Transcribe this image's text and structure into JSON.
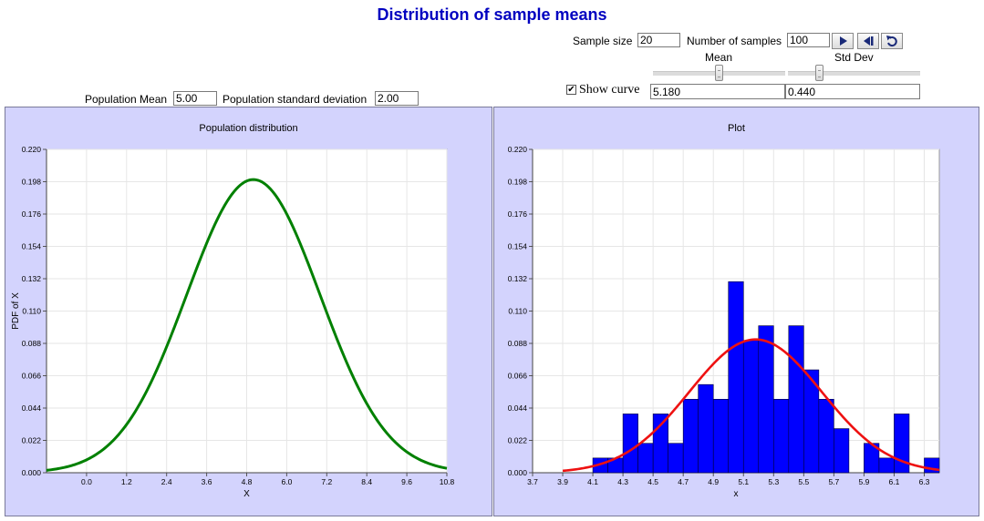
{
  "title": "Distribution of sample means",
  "controls": {
    "sample_size_label": "Sample size",
    "sample_size_value": "20",
    "num_samples_label": "Number of samples",
    "num_samples_value": "100",
    "mean_label": "Mean",
    "std_label": "Std Dev",
    "mean_slider": 0.5,
    "std_slider": 0.24,
    "show_curve_label": "Show curve",
    "show_curve_checked": true,
    "mean_value": "5.180",
    "std_value": "0.440",
    "pop_mean_label": "Population Mean",
    "pop_mean_value": "5.00",
    "pop_sd_label": "Population standard deviation",
    "pop_sd_value": "2.00",
    "play_icon": "play-icon",
    "step_icon": "step-icon",
    "reset_icon": "reset-icon"
  },
  "chart_data": [
    {
      "type": "line",
      "title": "Population distribution",
      "xlabel": "X",
      "ylabel": "PDF of X",
      "x_ticks": [
        "0.0",
        "1.2",
        "2.4",
        "3.6",
        "4.8",
        "6.0",
        "7.2",
        "8.4",
        "9.6",
        "10.8"
      ],
      "y_ticks": [
        "0.000",
        "0.022",
        "0.044",
        "0.066",
        "0.088",
        "0.110",
        "0.132",
        "0.154",
        "0.176",
        "0.198",
        "0.220"
      ],
      "xlim": [
        -1.2,
        10.8
      ],
      "ylim": [
        0,
        0.22
      ],
      "mean": 5.0,
      "sd": 2.0,
      "color": "#008000",
      "grid": true
    },
    {
      "type": "bar",
      "title": "Plot",
      "xlabel": "x",
      "ylabel": "",
      "x_ticks": [
        "3.7",
        "3.9",
        "4.1",
        "4.3",
        "4.5",
        "4.7",
        "4.9",
        "5.1",
        "5.3",
        "5.5",
        "5.7",
        "5.9",
        "6.1",
        "6.3"
      ],
      "y_ticks": [
        "0.000",
        "0.022",
        "0.044",
        "0.066",
        "0.088",
        "0.110",
        "0.132",
        "0.154",
        "0.176",
        "0.198",
        "0.220"
      ],
      "xlim": [
        3.7,
        6.4
      ],
      "ylim": [
        0,
        0.22
      ],
      "bin_width": 0.1,
      "bins": [
        {
          "x0": 4.1,
          "value": 0.01
        },
        {
          "x0": 4.2,
          "value": 0.01
        },
        {
          "x0": 4.3,
          "value": 0.04
        },
        {
          "x0": 4.4,
          "value": 0.02
        },
        {
          "x0": 4.5,
          "value": 0.04
        },
        {
          "x0": 4.6,
          "value": 0.02
        },
        {
          "x0": 4.7,
          "value": 0.05
        },
        {
          "x0": 4.8,
          "value": 0.06
        },
        {
          "x0": 4.9,
          "value": 0.05
        },
        {
          "x0": 5.0,
          "value": 0.13
        },
        {
          "x0": 5.1,
          "value": 0.09
        },
        {
          "x0": 5.2,
          "value": 0.1
        },
        {
          "x0": 5.3,
          "value": 0.05
        },
        {
          "x0": 5.4,
          "value": 0.1
        },
        {
          "x0": 5.5,
          "value": 0.07
        },
        {
          "x0": 5.6,
          "value": 0.05
        },
        {
          "x0": 5.7,
          "value": 0.03
        },
        {
          "x0": 5.9,
          "value": 0.02
        },
        {
          "x0": 6.0,
          "value": 0.01
        },
        {
          "x0": 6.1,
          "value": 0.04
        },
        {
          "x0": 6.3,
          "value": 0.01
        }
      ],
      "bar_color": "#0000ff",
      "curve": {
        "mean": 5.18,
        "sd": 0.44,
        "scale": 0.1,
        "color": "#ee1111"
      },
      "grid": true
    }
  ]
}
